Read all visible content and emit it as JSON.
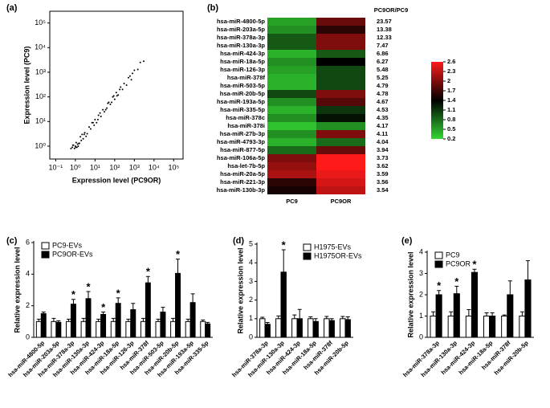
{
  "chart_data": [
    {
      "type": "scatter",
      "panel": "(a)",
      "x_label": "Expression level (PC9OR)",
      "y_label": "Expression level (PC9)",
      "log_x": true,
      "log_y": true,
      "color": "#000000",
      "x": [
        1,
        1.2,
        0.8,
        1.5,
        0.9,
        1.1,
        2,
        0.7,
        1.3,
        1.8,
        2.5,
        3,
        4,
        5,
        6,
        8,
        10,
        12,
        15,
        20,
        25,
        30,
        40,
        50,
        60,
        80,
        100,
        120,
        150,
        200,
        250,
        300,
        400,
        500,
        700,
        1000,
        1500,
        2000,
        3000,
        1.4,
        0.6,
        2.2,
        3.5,
        7,
        9,
        14,
        18,
        35,
        45,
        70,
        90,
        130,
        180,
        0.75,
        1.05,
        1.6,
        2.8,
        600,
        800
      ],
      "values": [
        1,
        0.9,
        1.1,
        1.3,
        0.8,
        1.4,
        1.7,
        0.9,
        1.2,
        2.4,
        2,
        3.5,
        3.2,
        6,
        5,
        9,
        12,
        9,
        18,
        16,
        30,
        25,
        35,
        60,
        50,
        100,
        80,
        150,
        120,
        250,
        200,
        350,
        300,
        600,
        500,
        1200,
        1300,
        2500,
        2800,
        1,
        0.8,
        3,
        2.5,
        9,
        7,
        12,
        22,
        30,
        55,
        60,
        110,
        110,
        200,
        1.1,
        0.9,
        1.3,
        3,
        700,
        900
      ],
      "xlim": [
        0.05,
        300000
      ],
      "ylim": [
        0.3,
        300000
      ],
      "xticks": [
        {
          "value": 0.1,
          "label": "10⁻¹"
        },
        {
          "value": 1,
          "label": "10⁰"
        },
        {
          "value": 10,
          "label": "10¹"
        },
        {
          "value": 100,
          "label": "10²"
        },
        {
          "value": 1000,
          "label": "10³"
        },
        {
          "value": 10000,
          "label": "10⁴"
        },
        {
          "value": 100000,
          "label": "10⁵"
        }
      ],
      "yticks": [
        {
          "value": 1,
          "label": "10⁰"
        },
        {
          "value": 10,
          "label": "10¹"
        },
        {
          "value": 100,
          "label": "10²"
        },
        {
          "value": 1000,
          "label": "10³"
        },
        {
          "value": 10000,
          "label": "10⁴"
        },
        {
          "value": 100000,
          "label": "10⁵"
        }
      ]
    },
    {
      "type": "heatmap",
      "panel": "(b)",
      "ratio_header": "PC9OR/PC9",
      "rows": [
        "hsa-miR-4800-5p",
        "hsa-miR-203a-5p",
        "hsa-miR-378a-3p",
        "hsa-miR-130a-3p",
        "hsa-miR-424-3p",
        "hsa-miR-18a-5p",
        "hsa-miR-126-3p",
        "hsa-miR-378f",
        "hsa-miR-503-5p",
        "hsa-miR-20b-5p",
        "hsa-miR-193a-5p",
        "hsa-miR-335-5p",
        "hsa-miR-378c",
        "hsa-miR-378i",
        "hsa-miR-27b-3p",
        "hsa-miR-4793-3p",
        "hsa-miR-877-5p",
        "hsa-miR-106a-5p",
        "hsa-let-7b-5p",
        "hsa-miR-20a-5p",
        "hsa-miR-221-3p",
        "hsa-miR-130b-3p"
      ],
      "columns": [
        "PC9",
        "PC9OR"
      ],
      "values": [
        [
          0.5,
          1.9
        ],
        [
          0.6,
          1.6
        ],
        [
          0.9,
          2.0
        ],
        [
          0.9,
          2.0
        ],
        [
          0.4,
          0.9
        ],
        [
          0.6,
          1.4
        ],
        [
          0.5,
          1.0
        ],
        [
          0.4,
          1.0
        ],
        [
          0.4,
          1.0
        ],
        [
          1.0,
          2.0
        ],
        [
          0.6,
          1.8
        ],
        [
          0.4,
          1.1
        ],
        [
          0.6,
          1.3
        ],
        [
          0.3,
          0.6
        ],
        [
          0.6,
          2.0
        ],
        [
          0.4,
          0.8
        ],
        [
          0.8,
          1.9
        ],
        [
          2.0,
          2.6
        ],
        [
          2.1,
          2.6
        ],
        [
          2.2,
          2.5
        ],
        [
          1.6,
          2.4
        ],
        [
          1.5,
          2.3
        ]
      ],
      "ratios": [
        23.57,
        13.38,
        12.33,
        7.47,
        6.86,
        6.27,
        5.48,
        5.25,
        4.79,
        4.78,
        4.67,
        4.53,
        4.35,
        4.17,
        4.11,
        4.04,
        3.94,
        3.73,
        3.62,
        3.59,
        3.56,
        3.54
      ],
      "colormap": [
        "#33d633",
        "#000000",
        "#ff1a1a"
      ],
      "clim": [
        0.2,
        2.6
      ],
      "cticks": [
        2.6,
        2.3,
        2.0,
        1.7,
        1.4,
        1.1,
        0.8,
        0.5,
        0.2
      ]
    },
    {
      "type": "bar",
      "panel": "(c)",
      "y_label": "Relative expression level",
      "legend": "top-left",
      "categories": [
        "hsa-miR-4800-5p",
        "hsa-miR-203a-5p",
        "hsa-miR-378a-3p",
        "hsa-miR-130a-3p",
        "hsa-miR-424-3p",
        "hsa-miR-18a-5p",
        "hsa-miR-126-3p",
        "hsa-miR-378f",
        "hsa-miR-503-5p",
        "hsa-miR-20b-5p",
        "hsa-miR-193a-5p",
        "hsa-miR-335-5p"
      ],
      "series": [
        {
          "name": "PC9-EVs",
          "color": "#ffffff",
          "values": [
            1,
            1,
            1,
            1,
            1,
            1,
            1,
            1,
            1,
            1,
            1,
            1
          ],
          "errors": [
            0.15,
            0.2,
            0.15,
            0.2,
            0.15,
            0.2,
            0.15,
            0.2,
            0.15,
            0.2,
            0.15,
            0.1
          ]
        },
        {
          "name": "PC9OR-EVs",
          "color": "#000000",
          "values": [
            1.5,
            0.95,
            2.1,
            2.45,
            1.45,
            2.15,
            1.75,
            3.45,
            1.6,
            4.05,
            2.2,
            0.85
          ],
          "errors": [
            0.1,
            0.1,
            0.3,
            0.45,
            0.15,
            0.35,
            0.4,
            0.4,
            0.3,
            0.9,
            0.55,
            0.1
          ],
          "marks": [
            null,
            null,
            "*",
            "*",
            "*",
            "*",
            null,
            "*",
            null,
            "*",
            null,
            null
          ]
        }
      ],
      "ylim": [
        0,
        6
      ],
      "yticks": [
        0,
        2,
        4,
        6
      ]
    },
    {
      "type": "bar",
      "panel": "(d)",
      "y_label": "Relative expression level",
      "legend": "top-right",
      "categories": [
        "hsa-miR-378a-3p",
        "hsa-miR-130a-3p",
        "hsa-miR-424-3p",
        "hsa-miR-18a-5p",
        "hsa-miR-378f",
        "hsa-miR-20b-5p"
      ],
      "series": [
        {
          "name": "H1975-EVs",
          "color": "#ffffff",
          "values": [
            1,
            1,
            1,
            1,
            1,
            1
          ],
          "errors": [
            0.08,
            0.15,
            0.2,
            0.1,
            0.12,
            0.12
          ]
        },
        {
          "name": "H1975OR-EVs",
          "color": "#000000",
          "values": [
            0.7,
            3.5,
            1.0,
            0.85,
            0.9,
            0.95
          ],
          "errors": [
            0.1,
            1.2,
            0.5,
            0.15,
            0.1,
            0.15
          ],
          "marks": [
            null,
            "*",
            null,
            null,
            null,
            null
          ]
        }
      ],
      "ylim": [
        0,
        5
      ],
      "yticks": [
        0,
        1,
        2,
        3,
        4,
        5
      ]
    },
    {
      "type": "bar",
      "panel": "(e)",
      "y_label": "Relative expression level",
      "legend": "top-left",
      "categories": [
        "hsa-miR-378a-3p",
        "hsa-miR-130a-3p",
        "hsa-miR-424-3p",
        "hsa-miR-18a-5p",
        "hsa-miR-378f",
        "hsa-miR-20b-5p"
      ],
      "series": [
        {
          "name": "PC9",
          "color": "#ffffff",
          "values": [
            1,
            1,
            1,
            1,
            1,
            1
          ],
          "errors": [
            0.2,
            0.2,
            0.3,
            0.15,
            0.05,
            0.2
          ],
          "marks": [
            null,
            null,
            null,
            null,
            null,
            null
          ]
        },
        {
          "name": "PC9OR",
          "color": "#000000",
          "values": [
            2.0,
            2.05,
            3.05,
            1.0,
            2.0,
            2.7
          ],
          "errors": [
            0.2,
            0.35,
            0.15,
            0.15,
            0.65,
            0.9
          ],
          "marks": [
            "*",
            "*",
            "*",
            null,
            null,
            null
          ]
        }
      ],
      "ylim": [
        0,
        4
      ],
      "yticks": [
        0,
        1,
        2,
        3,
        4
      ]
    }
  ]
}
